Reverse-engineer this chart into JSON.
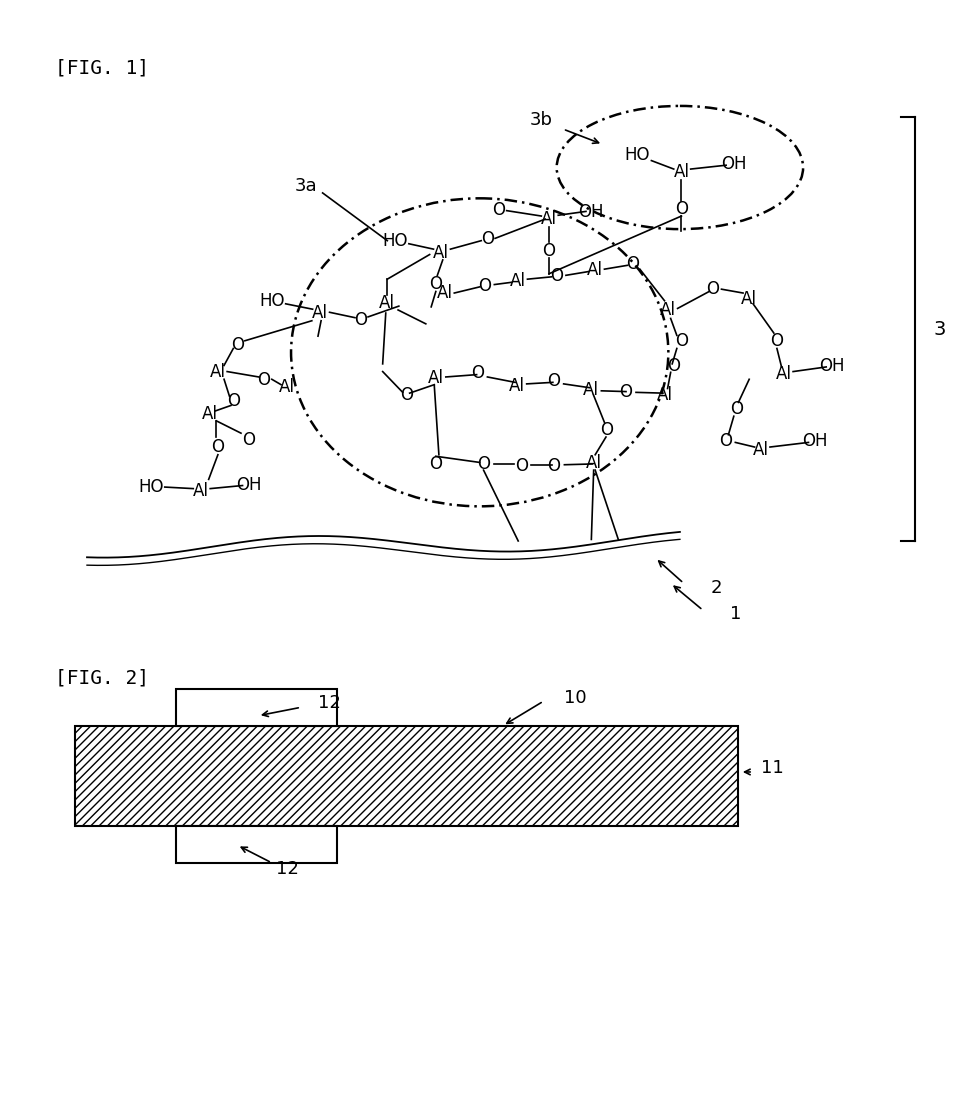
{
  "fig1_label": "[FIG. 1]",
  "fig2_label": "[FIG. 2]",
  "background_color": "#ffffff",
  "line_color": "#000000",
  "text_color": "#000000",
  "label_3": "3",
  "label_3a": "3a",
  "label_3b": "3b",
  "label_2": "2",
  "label_1": "1",
  "label_10": "10",
  "label_11": "11",
  "label_12": "12"
}
